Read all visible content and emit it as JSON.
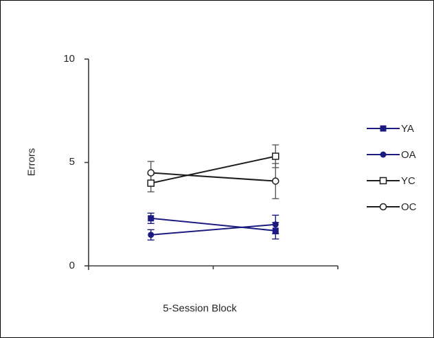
{
  "figure": {
    "background": "#ffffff",
    "border_color": "#000000",
    "text_color": "#262626"
  },
  "chart_data": {
    "type": "line",
    "categories": [
      "1",
      "2"
    ],
    "category_labels_visible": false,
    "series": [
      {
        "name": "YA",
        "values": [
          2.3,
          1.7
        ],
        "errors": [
          0.25,
          0.4
        ],
        "color": "#1a1a80",
        "error_color": "#1a1a80",
        "marker": "square-filled"
      },
      {
        "name": "OA",
        "values": [
          1.5,
          2.0
        ],
        "errors": [
          0.25,
          0.45
        ],
        "color": "#1a1a80",
        "error_color": "#1a1a80",
        "marker": "circle-filled"
      },
      {
        "name": "YC",
        "values": [
          4.0,
          5.3
        ],
        "errors": [
          0.42,
          0.55
        ],
        "color": "#1c1c1c",
        "error_color": "#5a5a5a",
        "marker": "square-open"
      },
      {
        "name": "OC",
        "values": [
          4.5,
          4.1
        ],
        "errors": [
          0.55,
          0.85
        ],
        "color": "#1c1c1c",
        "error_color": "#5a5a5a",
        "marker": "circle-open"
      }
    ],
    "title": "",
    "xlabel": "5-Session Block",
    "ylabel": "Errors",
    "ylim": [
      0,
      10
    ],
    "yticks": [
      0,
      5,
      10
    ],
    "ytick_labels": [
      "0",
      "5",
      "10"
    ],
    "grid": false,
    "legend_position": "right",
    "axis_color": "#3a3a3a"
  }
}
